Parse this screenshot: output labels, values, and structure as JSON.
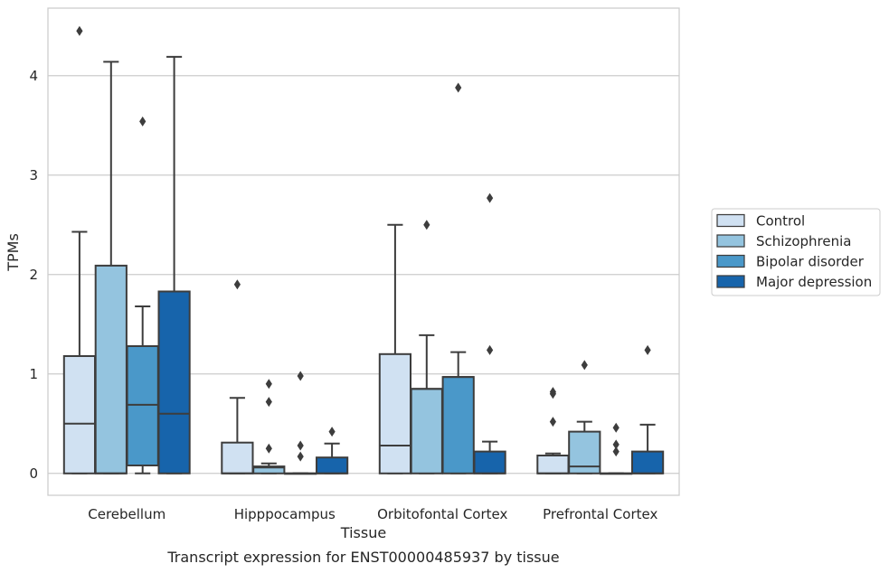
{
  "chart_data": {
    "type": "box",
    "caption": "Transcript expression for ENST00000485937 by tissue",
    "xlabel": "Tissue",
    "ylabel": "TPMs",
    "ylim": [
      -0.22,
      4.68
    ],
    "yticks": [
      0,
      1,
      2,
      3,
      4
    ],
    "grid": "horizontal",
    "legend_position": "right",
    "categories": [
      "Cerebellum",
      "Hipppocampus",
      "Orbitofontal Cortex",
      "Prefrontal Cortex"
    ],
    "series": [
      {
        "name": "Control",
        "color": "#d0e1f2",
        "boxes": [
          {
            "whisker_low": 0,
            "q1": 0,
            "median": 0.5,
            "q3": 1.18,
            "whisker_high": 2.43,
            "outliers": [
              4.45
            ]
          },
          {
            "whisker_low": 0,
            "q1": 0,
            "median": 0,
            "q3": 0.31,
            "whisker_high": 0.76,
            "outliers": [
              1.9
            ]
          },
          {
            "whisker_low": 0,
            "q1": 0,
            "median": 0.28,
            "q3": 1.2,
            "whisker_high": 2.5,
            "outliers": []
          },
          {
            "whisker_low": 0,
            "q1": 0,
            "median": 0,
            "q3": 0.18,
            "whisker_high": 0.2,
            "outliers": [
              0.52,
              0.8,
              0.82
            ]
          }
        ]
      },
      {
        "name": "Schizophrenia",
        "color": "#94c4df",
        "boxes": [
          {
            "whisker_low": 0,
            "q1": 0,
            "median": 0,
            "q3": 2.09,
            "whisker_high": 4.14,
            "outliers": []
          },
          {
            "whisker_low": 0,
            "q1": 0,
            "median": 0.06,
            "q3": 0.07,
            "whisker_high": 0.1,
            "outliers": [
              0.25,
              0.72,
              0.9
            ]
          },
          {
            "whisker_low": 0,
            "q1": 0,
            "median": 0.85,
            "q3": 0.85,
            "whisker_high": 1.39,
            "outliers": [
              2.5
            ]
          },
          {
            "whisker_low": 0,
            "q1": 0,
            "median": 0.07,
            "q3": 0.42,
            "whisker_high": 0.52,
            "outliers": [
              1.09
            ]
          }
        ]
      },
      {
        "name": "Bipolar disorder",
        "color": "#4a98c9",
        "boxes": [
          {
            "whisker_low": 0,
            "q1": 0.08,
            "median": 0.69,
            "q3": 1.28,
            "whisker_high": 1.68,
            "outliers": [
              3.54
            ]
          },
          {
            "whisker_low": 0,
            "q1": 0,
            "median": 0,
            "q3": 0,
            "whisker_high": 0,
            "outliers": [
              0.17,
              0.28,
              0.98
            ]
          },
          {
            "whisker_low": 0,
            "q1": 0,
            "median": 0.97,
            "q3": 0.97,
            "whisker_high": 1.22,
            "outliers": [
              3.88
            ]
          },
          {
            "whisker_low": 0,
            "q1": 0,
            "median": 0,
            "q3": 0,
            "whisker_high": 0,
            "outliers": [
              0.22,
              0.29,
              0.46
            ]
          }
        ]
      },
      {
        "name": "Major depression",
        "color": "#1764ab",
        "boxes": [
          {
            "whisker_low": 0,
            "q1": 0,
            "median": 0.6,
            "q3": 1.83,
            "whisker_high": 4.19,
            "outliers": []
          },
          {
            "whisker_low": 0,
            "q1": 0,
            "median": 0,
            "q3": 0.16,
            "whisker_high": 0.3,
            "outliers": [
              0.42
            ]
          },
          {
            "whisker_low": 0,
            "q1": 0,
            "median": 0,
            "q3": 0.22,
            "whisker_high": 0.32,
            "outliers": [
              1.24,
              2.77
            ]
          },
          {
            "whisker_low": 0,
            "q1": 0,
            "median": 0,
            "q3": 0.22,
            "whisker_high": 0.49,
            "outliers": [
              1.24
            ]
          }
        ]
      }
    ]
  }
}
